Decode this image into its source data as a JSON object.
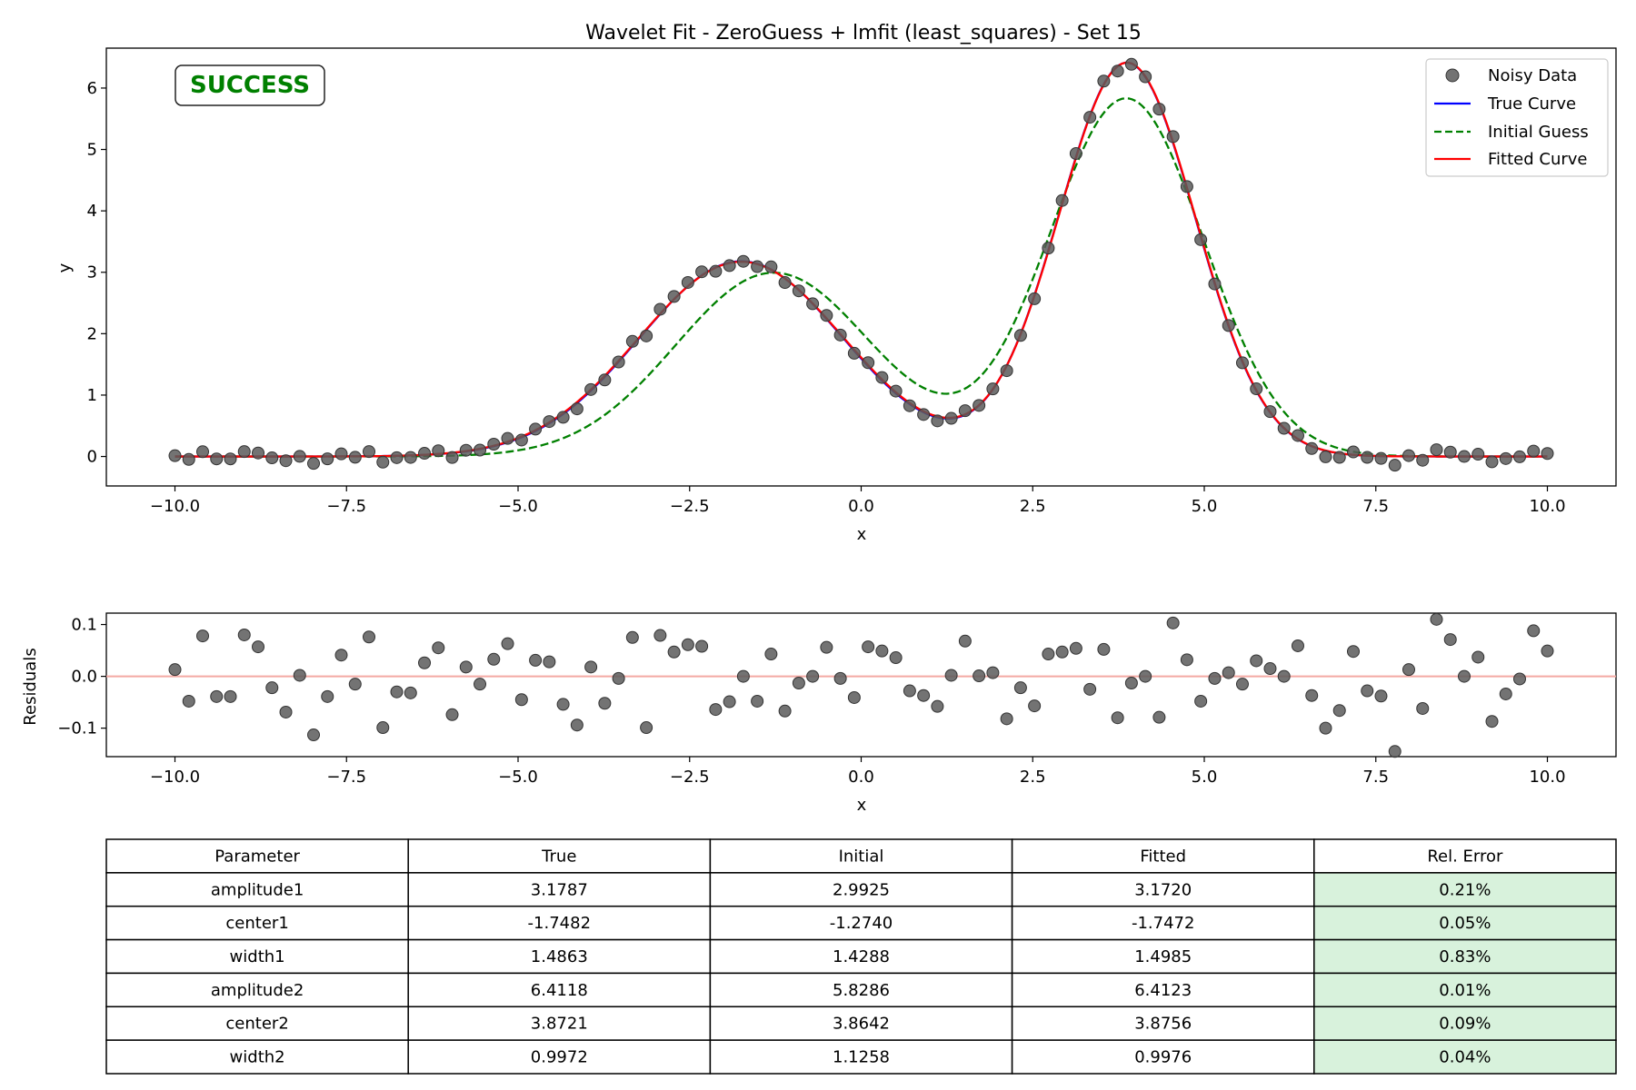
{
  "chart_data": [
    {
      "type": "line",
      "title": "Wavelet Fit - ZeroGuess + lmfit (least_squares) - Set 15",
      "xlabel": "x",
      "ylabel": "y",
      "xlim": [
        -11.0,
        11.0
      ],
      "ylim": [
        -0.48,
        6.65
      ],
      "xticks": [
        -10.0,
        -7.5,
        -5.0,
        -2.5,
        0.0,
        2.5,
        5.0,
        7.5,
        10.0
      ],
      "xtick_labels": [
        "−10.0",
        "−7.5",
        "−5.0",
        "−2.5",
        "0.0",
        "2.5",
        "5.0",
        "7.5",
        "10.0"
      ],
      "yticks": [
        0,
        1,
        2,
        3,
        4,
        5,
        6
      ],
      "ytick_labels": [
        "0",
        "1",
        "2",
        "3",
        "4",
        "5",
        "6"
      ],
      "grid": false,
      "legend_position": "top-right",
      "badge": "SUCCESS",
      "series": [
        {
          "name": "Noisy Data",
          "kind": "scatter",
          "color": "#5a5a5a"
        },
        {
          "name": "True Curve",
          "kind": "line",
          "color": "#0000ff",
          "params": {
            "amplitude1": 3.1787,
            "center1": -1.7482,
            "width1": 1.4863,
            "amplitude2": 6.4118,
            "center2": 3.8721,
            "width2": 0.9972
          }
        },
        {
          "name": "Initial Guess",
          "kind": "dashed",
          "color": "#008000",
          "params": {
            "amplitude1": 2.9925,
            "center1": -1.274,
            "width1": 1.4288,
            "amplitude2": 5.8286,
            "center2": 3.8642,
            "width2": 1.1258
          }
        },
        {
          "name": "Fitted Curve",
          "kind": "line",
          "color": "#ff0000",
          "params": {
            "amplitude1": 3.172,
            "center1": -1.7472,
            "width1": 1.4985,
            "amplitude2": 6.4123,
            "center2": 3.8756,
            "width2": 0.9976
          }
        }
      ]
    },
    {
      "type": "scatter",
      "xlabel": "x",
      "ylabel": "Residuals",
      "xlim": [
        -11.0,
        11.0
      ],
      "ylim": [
        -0.155,
        0.122
      ],
      "xticks": [
        -10.0,
        -7.5,
        -5.0,
        -2.5,
        0.0,
        2.5,
        5.0,
        7.5,
        10.0
      ],
      "xtick_labels": [
        "−10.0",
        "−7.5",
        "−5.0",
        "−2.5",
        "0.0",
        "2.5",
        "5.0",
        "7.5",
        "10.0"
      ],
      "yticks": [
        -0.1,
        0.0,
        0.1
      ],
      "ytick_labels": [
        "−0.1",
        "0.0",
        "0.1"
      ],
      "zero_line_color": "#f4a9a3",
      "x": [
        -10.0,
        -9.798,
        -9.596,
        -9.394,
        -9.192,
        -8.99,
        -8.788,
        -8.586,
        -8.384,
        -8.182,
        -7.98,
        -7.778,
        -7.576,
        -7.374,
        -7.172,
        -6.97,
        -6.768,
        -6.566,
        -6.364,
        -6.162,
        -5.96,
        -5.758,
        -5.556,
        -5.354,
        -5.152,
        -4.949,
        -4.747,
        -4.545,
        -4.343,
        -4.141,
        -3.939,
        -3.737,
        -3.535,
        -3.333,
        -3.131,
        -2.929,
        -2.727,
        -2.525,
        -2.323,
        -2.121,
        -1.919,
        -1.717,
        -1.515,
        -1.313,
        -1.111,
        -0.909,
        -0.707,
        -0.505,
        -0.303,
        -0.101,
        0.101,
        0.303,
        0.505,
        0.707,
        0.909,
        1.111,
        1.313,
        1.515,
        1.717,
        1.919,
        2.121,
        2.323,
        2.525,
        2.727,
        2.929,
        3.131,
        3.333,
        3.535,
        3.737,
        3.939,
        4.141,
        4.343,
        4.545,
        4.747,
        4.949,
        5.152,
        5.354,
        5.556,
        5.758,
        5.96,
        6.162,
        6.364,
        6.566,
        6.768,
        6.97,
        7.172,
        7.374,
        7.576,
        7.778,
        7.98,
        8.182,
        8.384,
        8.586,
        8.788,
        8.99,
        9.192,
        9.394,
        9.596,
        9.798,
        10.0
      ],
      "residuals": [
        0.013,
        -0.048,
        0.078,
        -0.039,
        -0.039,
        0.08,
        0.057,
        -0.022,
        -0.069,
        0.002,
        -0.113,
        -0.039,
        0.041,
        -0.015,
        0.076,
        -0.099,
        -0.03,
        -0.032,
        0.026,
        0.055,
        -0.074,
        0.018,
        -0.015,
        0.033,
        0.063,
        -0.045,
        0.031,
        0.028,
        -0.054,
        -0.094,
        0.018,
        -0.052,
        -0.004,
        0.075,
        -0.099,
        0.079,
        0.047,
        0.061,
        0.058,
        -0.064,
        -0.049,
        0.0,
        -0.048,
        0.043,
        -0.067,
        -0.013,
        0.0,
        0.056,
        -0.004,
        -0.041,
        0.057,
        0.049,
        0.036,
        -0.028,
        -0.037,
        -0.058,
        0.002,
        0.068,
        0.001,
        0.007,
        -0.082,
        -0.022,
        -0.057,
        0.043,
        0.047,
        0.054,
        -0.025,
        0.052,
        -0.08,
        -0.013,
        0.0,
        -0.079,
        0.103,
        0.032,
        -0.048,
        -0.004,
        0.007,
        -0.015,
        0.03,
        0.015,
        0.0,
        0.059,
        -0.037,
        -0.1,
        -0.066,
        0.048,
        -0.028,
        -0.038,
        -0.145,
        0.013,
        -0.062,
        0.11,
        0.071,
        0.0,
        0.037,
        -0.087,
        -0.034,
        -0.005,
        0.088,
        0.049
      ]
    },
    {
      "type": "table",
      "columns": [
        "Parameter",
        "True",
        "Initial",
        "Fitted",
        "Rel. Error"
      ],
      "rows": [
        [
          "amplitude1",
          "3.1787",
          "2.9925",
          "3.1720",
          "0.21%"
        ],
        [
          "center1",
          "-1.7482",
          "-1.2740",
          "-1.7472",
          "0.05%"
        ],
        [
          "width1",
          "1.4863",
          "1.4288",
          "1.4985",
          "0.83%"
        ],
        [
          "amplitude2",
          "6.4118",
          "5.8286",
          "6.4123",
          "0.01%"
        ],
        [
          "center2",
          "3.8721",
          "3.8642",
          "3.8756",
          "0.09%"
        ],
        [
          "width2",
          "0.9972",
          "1.1258",
          "0.9976",
          "0.04%"
        ]
      ],
      "highlight_column": 4,
      "highlight_color": "#d8f2dc"
    }
  ]
}
